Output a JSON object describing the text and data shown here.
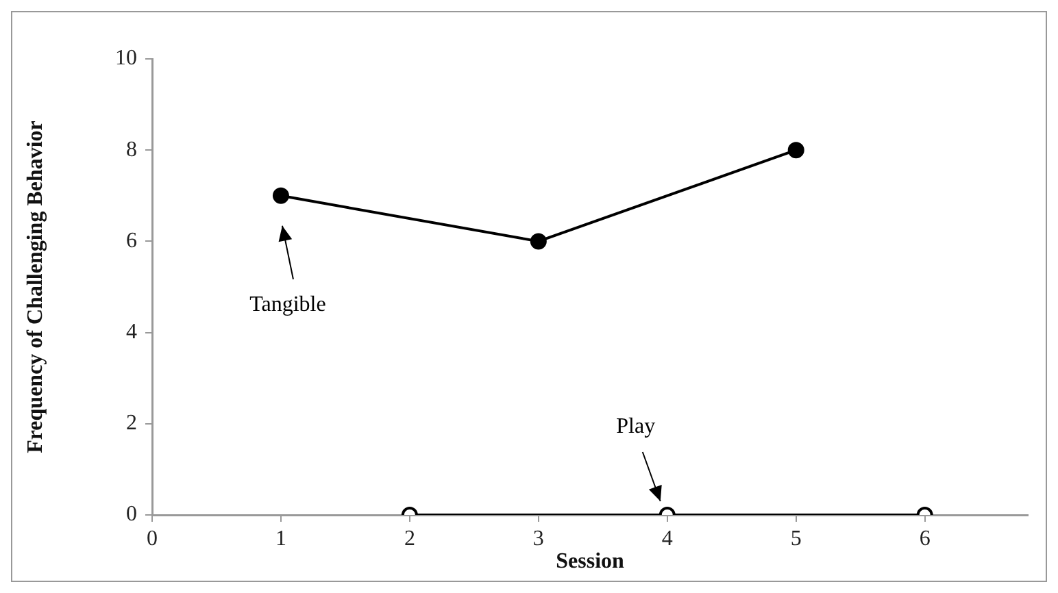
{
  "chart_data": {
    "type": "line",
    "xlabel": "Session",
    "ylabel": "Frequency of Challenging Behavior",
    "xlim": [
      0,
      6.8
    ],
    "xticks": [
      0,
      1,
      2,
      3,
      4,
      5,
      6
    ],
    "ylim": [
      0,
      10
    ],
    "yticks": [
      0,
      2,
      4,
      6,
      8,
      10
    ],
    "marker": "circle",
    "line_style": "solid",
    "legend": false,
    "grid": false,
    "series": [
      {
        "name": "Tangible",
        "color": "#000000",
        "x": [
          1,
          3,
          5
        ],
        "values": [
          7,
          6,
          8
        ]
      },
      {
        "name": "Play",
        "color": "#000000",
        "x": [
          2,
          4,
          6
        ],
        "values": [
          0,
          0,
          0
        ]
      }
    ]
  }
}
